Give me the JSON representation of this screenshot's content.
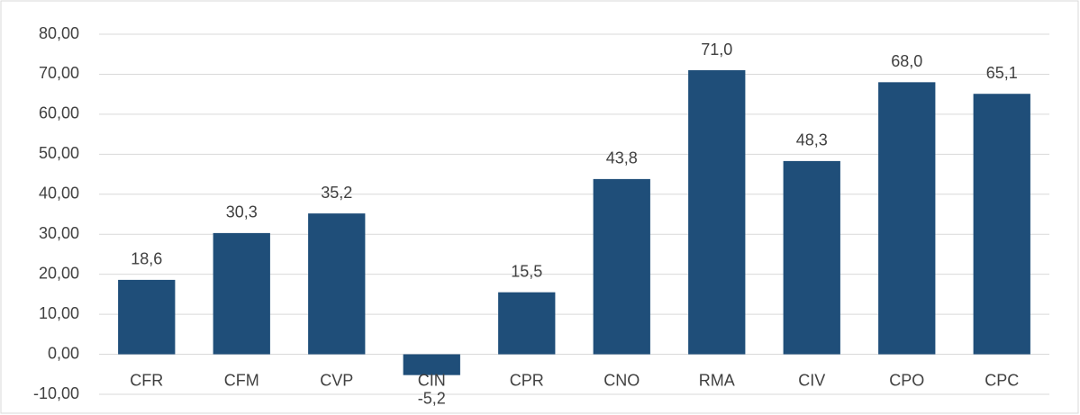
{
  "chart_data": {
    "type": "bar",
    "categories": [
      "CFR",
      "CFM",
      "CVP",
      "CIN",
      "CPR",
      "CNO",
      "RMA",
      "CIV",
      "CPO",
      "CPC"
    ],
    "values": [
      18.6,
      30.3,
      35.2,
      -5.2,
      15.5,
      43.8,
      71.0,
      48.3,
      68.0,
      65.1
    ],
    "value_labels": [
      "18,6",
      "30,3",
      "35,2",
      "-5,2",
      "15,5",
      "43,8",
      "71,0",
      "48,3",
      "68,0",
      "65,1"
    ],
    "color": "#1f4e79",
    "ylim": [
      -10,
      80
    ],
    "yticks": [
      {
        "value": -10,
        "label": "-10,00"
      },
      {
        "value": 0,
        "label": "0,00"
      },
      {
        "value": 10,
        "label": "10,00"
      },
      {
        "value": 20,
        "label": "20,00"
      },
      {
        "value": 30,
        "label": "30,00"
      },
      {
        "value": 40,
        "label": "40,00"
      },
      {
        "value": 50,
        "label": "50,00"
      },
      {
        "value": 60,
        "label": "60,00"
      },
      {
        "value": 70,
        "label": "70,00"
      },
      {
        "value": 80,
        "label": "80,00"
      }
    ],
    "grid": true
  }
}
